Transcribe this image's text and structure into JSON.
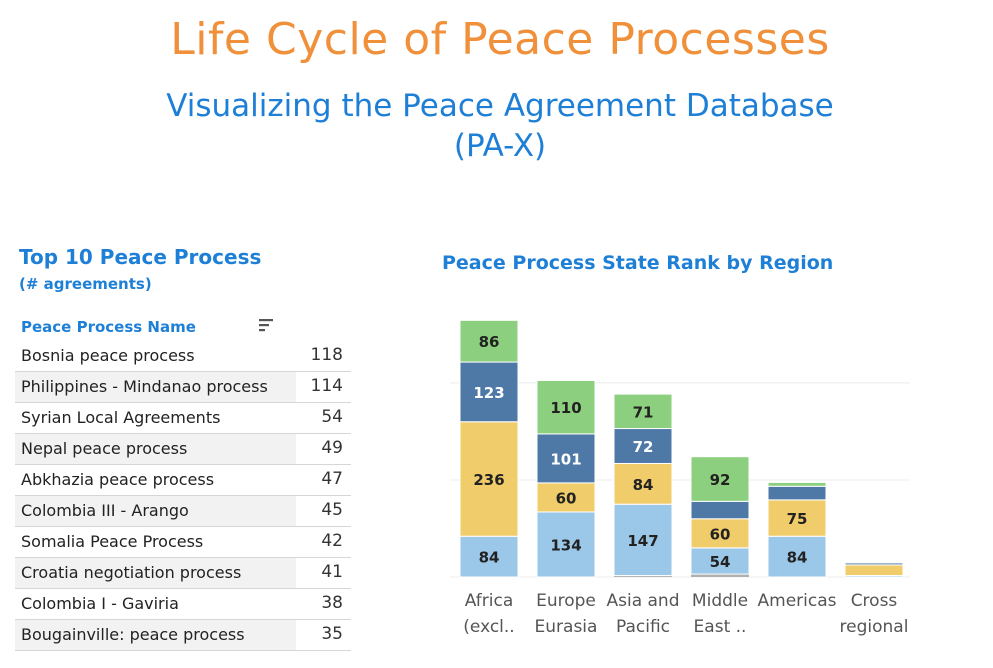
{
  "header": {
    "title": "Life Cycle of Peace Processes",
    "subtitle_line1": "Visualizing the Peace Agreement Database",
    "subtitle_line2": "(PA-X)"
  },
  "table": {
    "title": "Top 10  Peace Process",
    "subtitle": "(# agreements)",
    "column_header": "Peace Process Name",
    "sort_icon": "sort-descending-icon",
    "rows": [
      {
        "name": "Bosnia peace process",
        "value": "118"
      },
      {
        "name": "Philippines - Mindanao process",
        "value": "114"
      },
      {
        "name": "Syrian Local Agreements",
        "value": "54"
      },
      {
        "name": "Nepal peace process",
        "value": "49"
      },
      {
        "name": "Abkhazia peace process",
        "value": "47"
      },
      {
        "name": "Colombia III - Arango",
        "value": "45"
      },
      {
        "name": "Somalia Peace Process",
        "value": "42"
      },
      {
        "name": "Croatia negotiation process",
        "value": "41"
      },
      {
        "name": "Colombia I - Gaviria",
        "value": "38"
      },
      {
        "name": "Bougainville: peace process",
        "value": "35"
      }
    ]
  },
  "chart_data": {
    "type": "bar",
    "stacked": true,
    "title": "Peace Process State Rank by Region",
    "categories": [
      [
        "Africa",
        "(excl.."
      ],
      [
        "Europe",
        "Eurasia"
      ],
      [
        "Asia and",
        "Pacific"
      ],
      [
        "Middle",
        "East .."
      ],
      [
        "Americas",
        ""
      ],
      [
        "Cross",
        "regional"
      ]
    ],
    "series": [
      {
        "color": "#9bc7e8",
        "values": [
          84,
          134,
          147,
          54,
          84,
          3
        ]
      },
      {
        "color": "#f0cc6a",
        "values": [
          236,
          60,
          84,
          60,
          75,
          22
        ]
      },
      {
        "color": "#4e79a7",
        "values": [
          123,
          101,
          72,
          36,
          28,
          4
        ]
      },
      {
        "color": "#8ccf7e",
        "values": [
          86,
          110,
          71,
          92,
          8,
          0
        ]
      }
    ],
    "bottom_band": {
      "color": "#b0b0b0",
      "values": [
        0,
        0,
        3,
        6,
        0,
        0
      ]
    },
    "ylim": [
      0,
      540
    ],
    "grid": true,
    "legend": "none"
  }
}
